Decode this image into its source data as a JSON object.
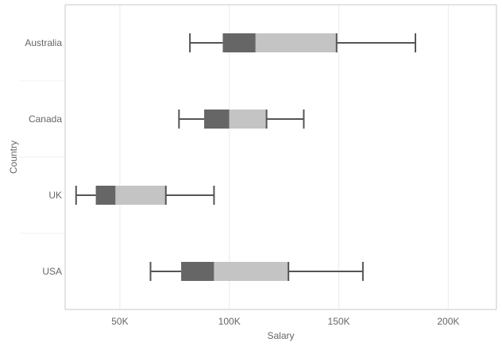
{
  "chart_data": {
    "type": "boxplot",
    "orientation": "horizontal",
    "xlabel": "Salary",
    "ylabel": "Country",
    "xlim": [
      25000,
      222000
    ],
    "x_ticks": [
      {
        "value": 50000,
        "label": "50K"
      },
      {
        "value": 100000,
        "label": "100K"
      },
      {
        "value": 150000,
        "label": "150K"
      },
      {
        "value": 200000,
        "label": "200K"
      }
    ],
    "categories": [
      "Australia",
      "Canada",
      "UK",
      "USA"
    ],
    "boxes": [
      {
        "category": "Australia",
        "min": 82000,
        "q1": 97000,
        "median": 112000,
        "q3": 149000,
        "max": 185000
      },
      {
        "category": "Canada",
        "min": 77000,
        "q1": 88500,
        "median": 100000,
        "q3": 117000,
        "max": 134000
      },
      {
        "category": "UK",
        "min": 30000,
        "q1": 39000,
        "median": 48000,
        "q3": 71000,
        "max": 93000
      },
      {
        "category": "USA",
        "min": 64000,
        "q1": 78000,
        "median": 93000,
        "q3": 127000,
        "max": 161000
      }
    ],
    "grid": true,
    "colors": {
      "lower_box": "#666666",
      "upper_box": "#c4c4c4",
      "whisker": "#555555",
      "grid": "#ebebeb",
      "axis": "#c8c8c8"
    }
  }
}
